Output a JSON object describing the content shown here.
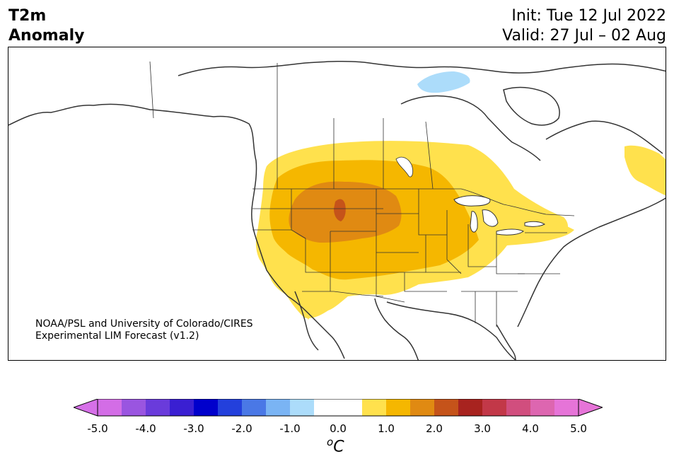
{
  "title": {
    "line1": "T2m",
    "line2": "Anomaly"
  },
  "dates": {
    "init": "Init: Tue 12 Jul 2022",
    "valid": "Valid: 27 Jul – 02 Aug"
  },
  "credit": {
    "line1": "NOAA/PSL and University of Colorado/CIRES",
    "line2": "Experimental LIM Forecast (v1.2)"
  },
  "colorbar": {
    "unit_base": "o",
    "unit_letter": "C",
    "ticks": [
      "-5.0",
      "-4.0",
      "-3.0",
      "-2.0",
      "-1.0",
      "0.0",
      "1.0",
      "2.0",
      "3.0",
      "4.0",
      "5.0"
    ],
    "colors": [
      "#d36de6",
      "#9a55e0",
      "#6a3bdb",
      "#3a1fd2",
      "#0000cc",
      "#2340dc",
      "#4a78e6",
      "#7ab4f4",
      "#acdcfa",
      "#ffffff",
      "#ffffff",
      "#ffe14d",
      "#f5b700",
      "#e08a12",
      "#c5531a",
      "#a8231f",
      "#c23848",
      "#d14e7e",
      "#dd66b0",
      "#e674d8"
    ],
    "under_color": "#d670e8",
    "over_color": "#e674d8"
  },
  "anomaly_colors": {
    "light_yellow": "#ffe14d",
    "gold": "#f5b700",
    "orange": "#e08a12",
    "red_orange": "#c5531a",
    "light_blue": "#acdcfa"
  }
}
